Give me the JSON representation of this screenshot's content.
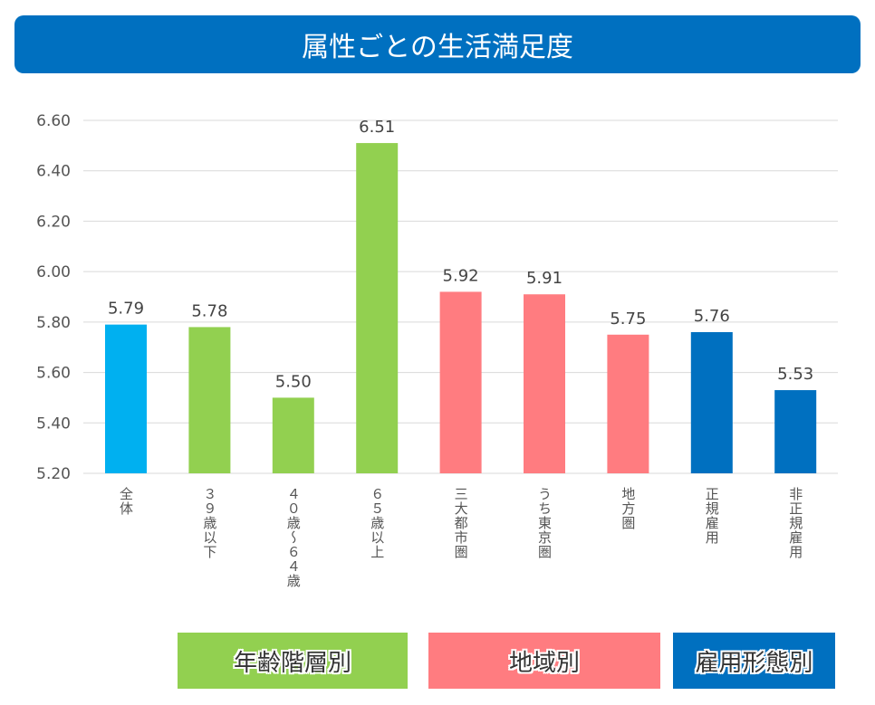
{
  "chart_data": {
    "type": "bar",
    "title": "属性ごとの生活満足度",
    "categories": [
      "全体",
      "３９歳以下",
      "４０歳～６４歳",
      "６５歳以上",
      "三大都市圏",
      "うち東京圏",
      "地方圏",
      "正規雇用",
      "非正規雇用"
    ],
    "values": [
      5.79,
      5.78,
      5.5,
      6.51,
      5.92,
      5.91,
      5.75,
      5.76,
      5.53
    ],
    "value_labels": [
      "5.79",
      "5.78",
      "5.50",
      "6.51",
      "5.92",
      "5.91",
      "5.75",
      "5.76",
      "5.53"
    ],
    "bar_colors": [
      "#00B0F0",
      "#92D050",
      "#92D050",
      "#92D050",
      "#FF7C80",
      "#FF7C80",
      "#FF7C80",
      "#0070C0",
      "#0070C0"
    ],
    "ylim": [
      5.2,
      6.6
    ],
    "yticks": [
      "5.20",
      "5.40",
      "5.60",
      "5.80",
      "6.00",
      "6.20",
      "6.40",
      "6.60"
    ],
    "grid": true,
    "groups": [
      {
        "label": "年齢階層別",
        "color": "#92D050"
      },
      {
        "label": "地域別",
        "color": "#FF7C80"
      },
      {
        "label": "雇用形態別",
        "color": "#0070C0"
      }
    ]
  }
}
